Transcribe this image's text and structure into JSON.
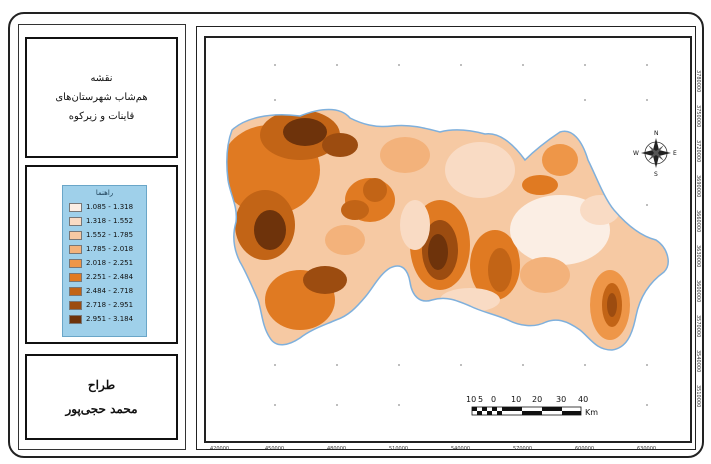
{
  "title": {
    "line1": "نقشه",
    "line2": "هم‌شاب شهرستان‌های",
    "line3": "قاینات و زیرکوه"
  },
  "legend": {
    "title": "راهنما",
    "classes": [
      {
        "label": "1.085 - 1.318",
        "color": "#fbeee4"
      },
      {
        "label": "1.318 - 1.552",
        "color": "#f9dbc4"
      },
      {
        "label": "1.552 - 1.785",
        "color": "#f6c9a3"
      },
      {
        "label": "1.785 - 2.018",
        "color": "#f3b27b"
      },
      {
        "label": "2.018 - 2.251",
        "color": "#ee9648"
      },
      {
        "label": "2.251 - 2.484",
        "color": "#e07a22"
      },
      {
        "label": "2.484 - 2.718",
        "color": "#c26416"
      },
      {
        "label": "2.718 - 2.951",
        "color": "#9c4c10"
      },
      {
        "label": "2.951 - 3.184",
        "color": "#6e330b"
      }
    ]
  },
  "designer": {
    "label": "طراح",
    "name": "محمد حجی‌پور"
  },
  "map": {
    "x_ticks": [
      "420000",
      "450000",
      "480000",
      "510000",
      "540000",
      "570000",
      "600000",
      "630000"
    ],
    "y_ticks": [
      "3780000",
      "3750000",
      "3720000",
      "3690000",
      "3660000",
      "3630000",
      "3600000",
      "3570000",
      "3540000",
      "3510000"
    ],
    "north_arrow": {
      "icon": "compass-rose-icon",
      "n": "N",
      "s": "S",
      "e": "E",
      "w": "W"
    },
    "scale_bar": {
      "labels": [
        "10",
        "5",
        "0",
        "10",
        "20",
        "30",
        "40"
      ],
      "unit": "Km"
    },
    "boundary_color": "#7fb0dc"
  }
}
